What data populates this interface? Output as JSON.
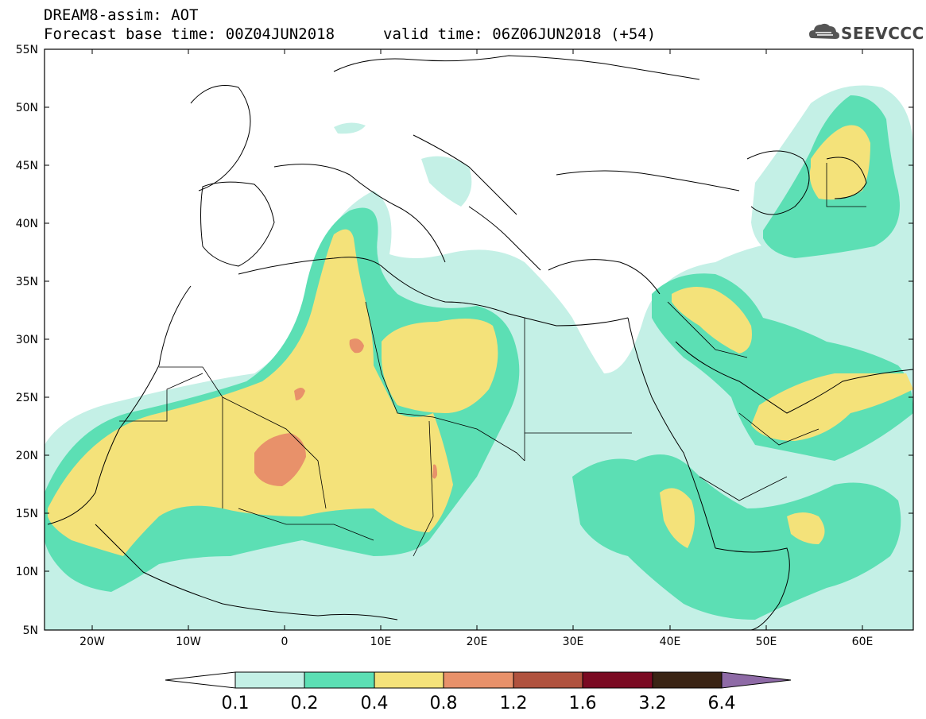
{
  "header": {
    "title": "DREAM8-assim: AOT",
    "base_time": "Forecast base time: 00Z04JUN2018",
    "valid_time": "valid time: 06Z06JUN2018 (+54)"
  },
  "logo": {
    "text": "SEEVCCC",
    "icon": "cloud-icon"
  },
  "map": {
    "lat_ticks": [
      "55N",
      "50N",
      "45N",
      "40N",
      "35N",
      "30N",
      "25N",
      "20N",
      "15N",
      "10N",
      "5N"
    ],
    "lon_ticks": [
      "20W",
      "10W",
      "0",
      "10E",
      "20E",
      "30E",
      "40E",
      "50E",
      "60E"
    ]
  },
  "colorbar": {
    "labels": [
      "0.1",
      "0.2",
      "0.4",
      "0.8",
      "1.2",
      "1.6",
      "3.2",
      "6.4"
    ],
    "colors": [
      "#ffffff",
      "#c4f0e6",
      "#5cdfb4",
      "#f4e27a",
      "#e8916a",
      "#b0523e",
      "#7a0a22",
      "#3a2414",
      "#8e6aa6"
    ]
  },
  "colors": {
    "lev1": "#c4f0e6",
    "lev2": "#5cdfb4",
    "lev3": "#f4e27a",
    "lev4": "#e8916a"
  }
}
